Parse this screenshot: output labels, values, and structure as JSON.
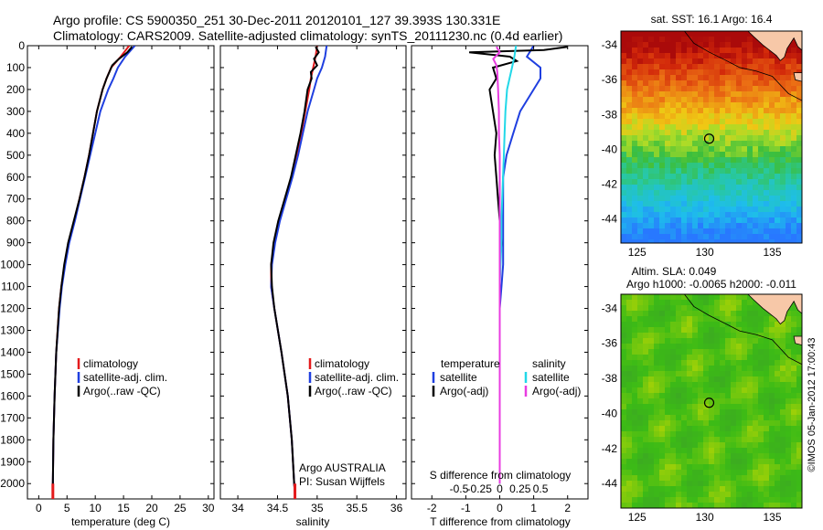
{
  "header": {
    "line1": "Argo profile: CS 5900350_251 30-Dec-2011 20120101_127 39.393S 130.331E",
    "line2": "Climatology: CARS2009. Satellite-adjusted climatology: synTS_20111230.nc (0.4d earlier)"
  },
  "colors": {
    "climatology": "#e41a1c",
    "satellite": "#1f3fe0",
    "argo": "#000000",
    "sal_satellite": "#22d8e8",
    "sal_argo": "#e83ce0",
    "land": "#f7c8a8"
  },
  "chart_data": [
    {
      "type": "line",
      "name": "temperature_panel",
      "xlabel": "temperature (deg C)",
      "xticks": [
        "0",
        "5",
        "10",
        "15",
        "20",
        "25",
        "30"
      ],
      "xlim": [
        -2,
        31
      ],
      "ylim": [
        2070,
        0
      ],
      "yticks": [
        "0",
        "100",
        "200",
        "300",
        "400",
        "500",
        "600",
        "700",
        "800",
        "900",
        "1000",
        "1100",
        "1200",
        "1300",
        "1400",
        "1500",
        "1600",
        "1700",
        "1800",
        "1900",
        "2000"
      ],
      "legend": [
        "climatology",
        "satellite-adj. clim.",
        "Argo(..raw -QC)"
      ],
      "series": [
        {
          "name": "climatology",
          "depth": [
            0,
            50,
            100,
            150,
            200,
            300,
            400,
            500,
            600,
            700,
            800,
            900,
            1000,
            1100,
            1200,
            1400,
            1600,
            1800,
            2000,
            2050
          ],
          "values": [
            16.0,
            14.5,
            12.8,
            12.0,
            11.3,
            10.3,
            9.6,
            8.9,
            8.1,
            7.2,
            6.3,
            5.3,
            4.6,
            4.0,
            3.6,
            3.1,
            2.8,
            2.6,
            2.5,
            2.5
          ]
        },
        {
          "name": "satellite-adj. clim.",
          "depth": [
            0,
            50,
            100,
            150,
            200,
            300,
            400,
            500,
            600,
            700,
            800,
            900,
            1000,
            1100,
            1200,
            1400,
            1600,
            1800,
            2000,
            2050
          ],
          "values": [
            17.0,
            15.3,
            14.0,
            13.2,
            12.3,
            10.9,
            10.0,
            9.1,
            8.2,
            7.3,
            6.4,
            5.4,
            4.7,
            4.1,
            3.7,
            3.1,
            2.8,
            2.6,
            2.5,
            2.5
          ]
        },
        {
          "name": "Argo(..raw -QC)",
          "depth": [
            5,
            30,
            60,
            90,
            120,
            150,
            200,
            250,
            300,
            400,
            500,
            600,
            700,
            800,
            900,
            1000,
            1100,
            1200,
            1400,
            1600,
            1800,
            2000,
            2040
          ],
          "values": [
            16.5,
            15.7,
            14.2,
            13.0,
            12.5,
            12.0,
            11.3,
            10.8,
            10.3,
            9.6,
            8.9,
            8.1,
            7.2,
            6.2,
            5.2,
            4.5,
            4.0,
            3.6,
            3.1,
            2.8,
            2.6,
            2.5,
            2.5
          ]
        }
      ]
    },
    {
      "type": "line",
      "name": "salinity_panel",
      "xlabel": "salinity",
      "xticks": [
        "34",
        "34.5",
        "35",
        "35.5",
        "36"
      ],
      "xlim": [
        33.78,
        36.12
      ],
      "ylim": [
        2070,
        0
      ],
      "legend": [
        "climatology",
        "satellite-adj. clim.",
        "Argo(..raw -QC)"
      ],
      "annotation": [
        "Argo AUSTRALIA",
        "PI: Susan Wijffels"
      ],
      "series": [
        {
          "name": "climatology",
          "depth": [
            0,
            50,
            100,
            150,
            200,
            300,
            400,
            500,
            600,
            700,
            800,
            900,
            1000,
            1100,
            1200,
            1400,
            1600,
            1800,
            2000,
            2050
          ],
          "values": [
            35.0,
            34.98,
            34.95,
            34.92,
            34.9,
            34.85,
            34.8,
            34.74,
            34.68,
            34.6,
            34.52,
            34.46,
            34.42,
            34.42,
            34.46,
            34.55,
            34.63,
            34.68,
            34.71,
            34.72
          ]
        },
        {
          "name": "satellite-adj. clim.",
          "depth": [
            0,
            50,
            100,
            150,
            200,
            300,
            400,
            500,
            600,
            700,
            800,
            900,
            1000,
            1100,
            1200,
            1400,
            1600,
            1800,
            2000,
            2050
          ],
          "values": [
            35.12,
            35.1,
            35.06,
            35.0,
            34.96,
            34.88,
            34.82,
            34.76,
            34.69,
            34.61,
            34.53,
            34.47,
            34.43,
            34.42,
            34.46,
            34.55,
            34.63,
            34.68,
            34.71,
            34.72
          ]
        },
        {
          "name": "Argo(..raw -QC)",
          "depth": [
            5,
            30,
            60,
            90,
            120,
            150,
            200,
            300,
            400,
            500,
            600,
            700,
            800,
            900,
            1000,
            1100,
            1200,
            1400,
            1600,
            1800,
            2000,
            2040
          ],
          "values": [
            34.98,
            35.02,
            34.96,
            35.0,
            34.92,
            34.93,
            34.88,
            34.84,
            34.79,
            34.73,
            34.67,
            34.59,
            34.51,
            34.45,
            34.42,
            34.43,
            34.46,
            34.55,
            34.63,
            34.68,
            34.71,
            34.72
          ]
        }
      ]
    },
    {
      "type": "line",
      "name": "difference_panel",
      "xlabel": "T difference from climatology",
      "xticks": [
        "-2",
        "-1",
        "0",
        "1",
        "2"
      ],
      "xlim": [
        -2.6,
        2.6
      ],
      "top_axis_label": "S difference from climatology",
      "top_ticks": [
        "-0.5",
        "-0.25",
        "0",
        "0.25",
        "0.5"
      ],
      "ylim": [
        2070,
        0
      ],
      "legend_temperature": {
        "heading": "temperature",
        "items": [
          "satellite",
          "Argo(-adj)"
        ]
      },
      "legend_salinity": {
        "heading": "salinity",
        "items": [
          "satellite",
          "Argo(-adj)"
        ]
      },
      "series": [
        {
          "name": "temperature satellite",
          "depth": [
            0,
            50,
            100,
            150,
            200,
            300,
            400,
            500,
            600,
            700,
            800,
            900,
            1000,
            1100,
            1200,
            1500,
            2000
          ],
          "values": [
            1.0,
            0.8,
            1.2,
            1.2,
            1.0,
            0.6,
            0.4,
            0.2,
            0.1,
            0.1,
            0.1,
            0.1,
            0.1,
            0.05,
            0,
            0,
            0
          ]
        },
        {
          "name": "temperature Argo(-adj)",
          "depth": [
            5,
            20,
            30,
            50,
            70,
            100,
            150,
            200,
            300,
            400,
            500,
            600,
            700,
            800,
            900,
            1000,
            1100,
            1200,
            1500,
            2000
          ],
          "values": [
            2.0,
            1.3,
            -0.9,
            0.3,
            0.5,
            -0.2,
            -0.1,
            -0.3,
            -0.2,
            -0.1,
            -0.15,
            -0.1,
            -0.05,
            0,
            0.05,
            0,
            0,
            0,
            0,
            0
          ]
        },
        {
          "name": "salinity satellite",
          "depth": [
            0,
            50,
            100,
            150,
            200,
            300,
            400,
            500,
            600,
            700,
            800,
            900,
            1000,
            1100,
            1200,
            1500,
            2000
          ],
          "values": [
            0.2,
            0.18,
            0.15,
            0.12,
            0.09,
            0.07,
            0.06,
            0.05,
            0.04,
            0.03,
            0.02,
            0.02,
            0.01,
            0.0,
            0,
            0,
            0
          ]
        },
        {
          "name": "salinity Argo(-adj)",
          "depth": [
            5,
            30,
            60,
            90,
            120,
            200,
            300,
            400,
            500,
            600,
            700,
            800,
            900,
            1000,
            1200,
            1500,
            2000
          ],
          "values": [
            -0.04,
            0.0,
            -0.08,
            -0.04,
            -0.03,
            -0.02,
            -0.01,
            -0.01,
            0,
            0,
            0,
            0,
            0,
            0,
            0,
            0,
            0
          ]
        }
      ]
    },
    {
      "type": "heatmap",
      "name": "sst_map",
      "title": "sat. SST: 16.1  Argo: 16.4",
      "xticks": [
        "125",
        "130",
        "135"
      ],
      "xlim": [
        123.8,
        137.2
      ],
      "yticks": [
        "-34",
        "-36",
        "-38",
        "-40",
        "-42",
        "-44"
      ],
      "ylim": [
        -45.4,
        -33.2
      ],
      "marker": {
        "lon": 130.331,
        "lat": -39.393
      }
    },
    {
      "type": "heatmap",
      "name": "sla_map",
      "title_line1": "Altim. SLA: 0.049",
      "title_line2": "Argo h1000: -0.0065 h2000: -0.011",
      "xticks": [
        "125",
        "130",
        "135"
      ],
      "xlim": [
        123.8,
        137.2
      ],
      "yticks": [
        "-34",
        "-36",
        "-38",
        "-40",
        "-42",
        "-44"
      ],
      "ylim": [
        -45.4,
        -33.2
      ],
      "marker": {
        "lon": 130.331,
        "lat": -39.393
      }
    }
  ],
  "credit": "©IMOS 05-Jan-2012 17:00:43"
}
